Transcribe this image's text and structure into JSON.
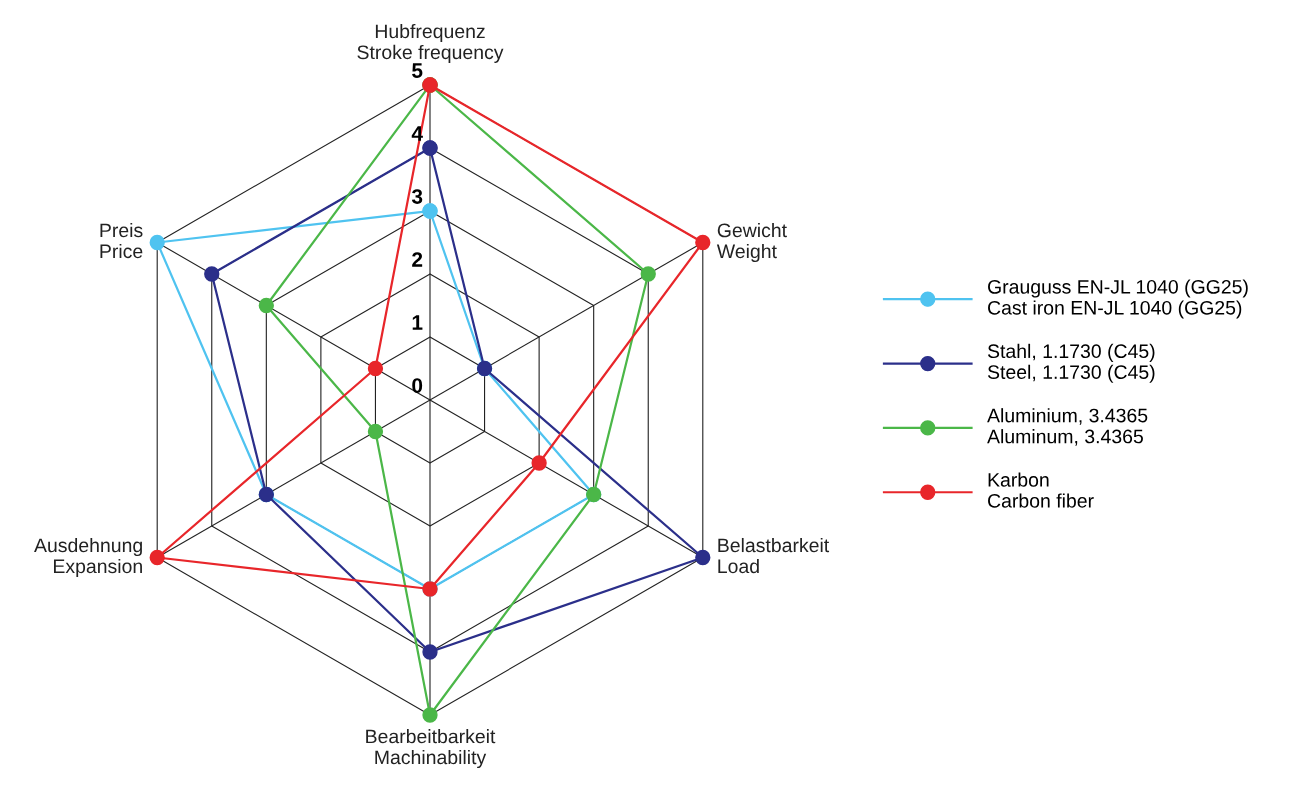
{
  "chart_data": {
    "type": "radar",
    "categories": [
      "Hubfrequenz\nStroke frequency",
      "Gewicht\nWeight",
      "Belastbarkeit\nLoad",
      "Bearbeitbarkeit\nMachinability",
      "Ausdehnung\nExpansion",
      "Preis\nPrice"
    ],
    "series": [
      {
        "name": "Grauguss EN-JL 1040 (GG25)\nCast iron EN-JL 1040 (GG25)",
        "color": "#4fc3f0",
        "values": [
          3,
          1,
          3,
          3,
          3,
          5
        ]
      },
      {
        "name": "Stahl, 1.1730 (C45)\nSteel, 1.1730 (C45)",
        "color": "#2b2f8a",
        "values": [
          4,
          1,
          5,
          4,
          3,
          4
        ]
      },
      {
        "name": "Aluminium, 3.4365\nAluminum, 3.4365",
        "color": "#4bb748",
        "values": [
          5,
          4,
          3,
          5,
          1,
          3
        ]
      },
      {
        "name": "Karbon\nCarbon fiber",
        "color": "#e8262a",
        "values": [
          5,
          5,
          2,
          3,
          5,
          1
        ]
      }
    ],
    "ylim": [
      0,
      5
    ],
    "yticks": [
      0,
      1,
      2,
      3,
      4,
      5
    ],
    "grid": true,
    "legend": "right",
    "marker": "circle",
    "line_style": "solid"
  }
}
